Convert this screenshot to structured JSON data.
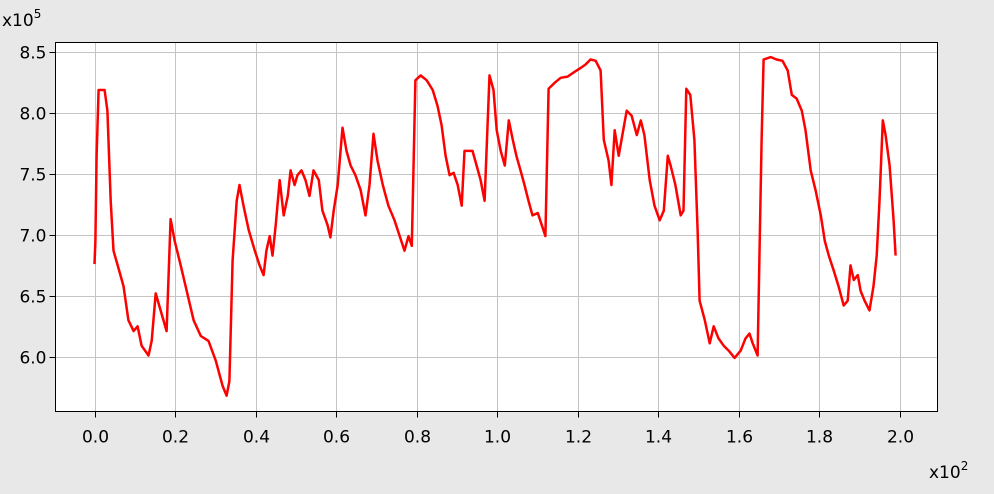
{
  "chart_data": {
    "type": "line",
    "y_multiplier": {
      "base": "x10",
      "exponent": "5"
    },
    "x_multiplier": {
      "base": "x10",
      "exponent": "2"
    },
    "xlim": [
      -0.097,
      2.094
    ],
    "ylim": [
      5.55,
      8.58
    ],
    "xticks": [
      {
        "value": 0,
        "label": "0.0"
      },
      0.2,
      0.4,
      0.6,
      0.8,
      {
        "value": 1,
        "label": "1.0"
      },
      1.2,
      1.4,
      1.6,
      1.8,
      {
        "value": 2,
        "label": "2.0"
      }
    ],
    "yticks": [
      {
        "value": 6,
        "label": "6.0"
      },
      6.5,
      {
        "value": 7,
        "label": "7.0"
      },
      7.5,
      {
        "value": 8,
        "label": "8.0"
      },
      8.5
    ],
    "grid": true,
    "series": [
      {
        "color": "#ff0000",
        "x": [
          0,
          0.002,
          0.005,
          0.01,
          0.025,
          0.032,
          0.04,
          0.047,
          0.06,
          0.072,
          0.084,
          0.097,
          0.107,
          0.117,
          0.134,
          0.142,
          0.152,
          0.164,
          0.179,
          0.189,
          0.199,
          0.214,
          0.229,
          0.246,
          0.264,
          0.283,
          0.301,
          0.318,
          0.328,
          0.335,
          0.343,
          0.353,
          0.36,
          0.37,
          0.383,
          0.398,
          0.41,
          0.42,
          0.427,
          0.435,
          0.442,
          0.45,
          0.46,
          0.47,
          0.48,
          0.487,
          0.497,
          0.504,
          0.514,
          0.524,
          0.534,
          0.544,
          0.557,
          0.566,
          0.579,
          0.586,
          0.594,
          0.604,
          0.616,
          0.626,
          0.636,
          0.648,
          0.661,
          0.673,
          0.683,
          0.693,
          0.703,
          0.716,
          0.73,
          0.745,
          0.758,
          0.77,
          0.78,
          0.788,
          0.797,
          0.81,
          0.825,
          0.84,
          0.852,
          0.862,
          0.872,
          0.882,
          0.892,
          0.902,
          0.912,
          0.919,
          0.929,
          0.939,
          0.949,
          0.959,
          0.969,
          0.981,
          0.991,
          0.999,
          1.009,
          1.019,
          1.029,
          1.039,
          1.048,
          1.058,
          1.068,
          1.078,
          1.088,
          1.101,
          1.111,
          1.12,
          1.128,
          1.143,
          1.158,
          1.175,
          1.193,
          1.207,
          1.22,
          1.232,
          1.245,
          1.257,
          1.265,
          1.277,
          1.284,
          1.292,
          1.302,
          1.309,
          1.322,
          1.334,
          1.347,
          1.357,
          1.366,
          1.379,
          1.391,
          1.404,
          1.414,
          1.424,
          1.431,
          1.443,
          1.456,
          1.463,
          1.47,
          1.48,
          1.49,
          1.498,
          1.503,
          1.516,
          1.528,
          1.538,
          1.55,
          1.563,
          1.575,
          1.59,
          1.605,
          1.617,
          1.627,
          1.635,
          1.647,
          1.657,
          1.662,
          1.68,
          1.694,
          1.709,
          1.722,
          1.732,
          1.744,
          1.757,
          1.766,
          1.779,
          1.791,
          1.804,
          1.814,
          1.824,
          1.836,
          1.848,
          1.861,
          1.871,
          1.878,
          1.886,
          1.896,
          1.903,
          1.913,
          1.925,
          1.935,
          1.943,
          1.95,
          1.958,
          1.965,
          1.975,
          1.985,
          1.99
        ],
        "values": [
          6.76,
          6.95,
          7.65,
          8.19,
          8.19,
          8.02,
          7.28,
          6.87,
          6.72,
          6.58,
          6.3,
          6.21,
          6.25,
          6.09,
          6.01,
          6.13,
          6.52,
          6.38,
          6.21,
          7.13,
          6.95,
          6.75,
          6.54,
          6.3,
          6.17,
          6.13,
          5.97,
          5.76,
          5.68,
          5.8,
          6.79,
          7.28,
          7.41,
          7.24,
          7.04,
          6.87,
          6.75,
          6.67,
          6.87,
          6.99,
          6.83,
          7.08,
          7.45,
          7.16,
          7.32,
          7.53,
          7.41,
          7.49,
          7.53,
          7.45,
          7.32,
          7.53,
          7.45,
          7.2,
          7.08,
          6.98,
          7.2,
          7.41,
          7.88,
          7.69,
          7.57,
          7.49,
          7.37,
          7.16,
          7.41,
          7.83,
          7.61,
          7.41,
          7.24,
          7.12,
          6.99,
          6.87,
          6.99,
          6.91,
          8.27,
          8.31,
          8.27,
          8.19,
          8.06,
          7.9,
          7.65,
          7.49,
          7.51,
          7.41,
          7.24,
          7.69,
          7.69,
          7.69,
          7.57,
          7.45,
          7.28,
          8.31,
          8.19,
          7.86,
          7.69,
          7.57,
          7.94,
          7.78,
          7.65,
          7.53,
          7.41,
          7.28,
          7.16,
          7.18,
          7.08,
          6.99,
          8.2,
          8.25,
          8.29,
          8.3,
          8.34,
          8.37,
          8.4,
          8.44,
          8.43,
          8.35,
          7.78,
          7.61,
          7.41,
          7.86,
          7.65,
          7.78,
          8.02,
          7.98,
          7.82,
          7.94,
          7.82,
          7.45,
          7.24,
          7.12,
          7.2,
          7.65,
          7.57,
          7.41,
          7.16,
          7.2,
          8.2,
          8.15,
          7.78,
          7.04,
          6.46,
          6.3,
          6.11,
          6.25,
          6.15,
          6.09,
          6.05,
          5.99,
          6.05,
          6.15,
          6.19,
          6.11,
          6.01,
          7.78,
          8.44,
          8.46,
          8.44,
          8.43,
          8.35,
          8.15,
          8.12,
          8.02,
          7.86,
          7.53,
          7.37,
          7.16,
          6.95,
          6.83,
          6.71,
          6.58,
          6.42,
          6.46,
          6.75,
          6.63,
          6.67,
          6.54,
          6.46,
          6.38,
          6.58,
          6.83,
          7.28,
          7.94,
          7.82,
          7.57,
          7.12,
          6.83
        ]
      }
    ]
  }
}
